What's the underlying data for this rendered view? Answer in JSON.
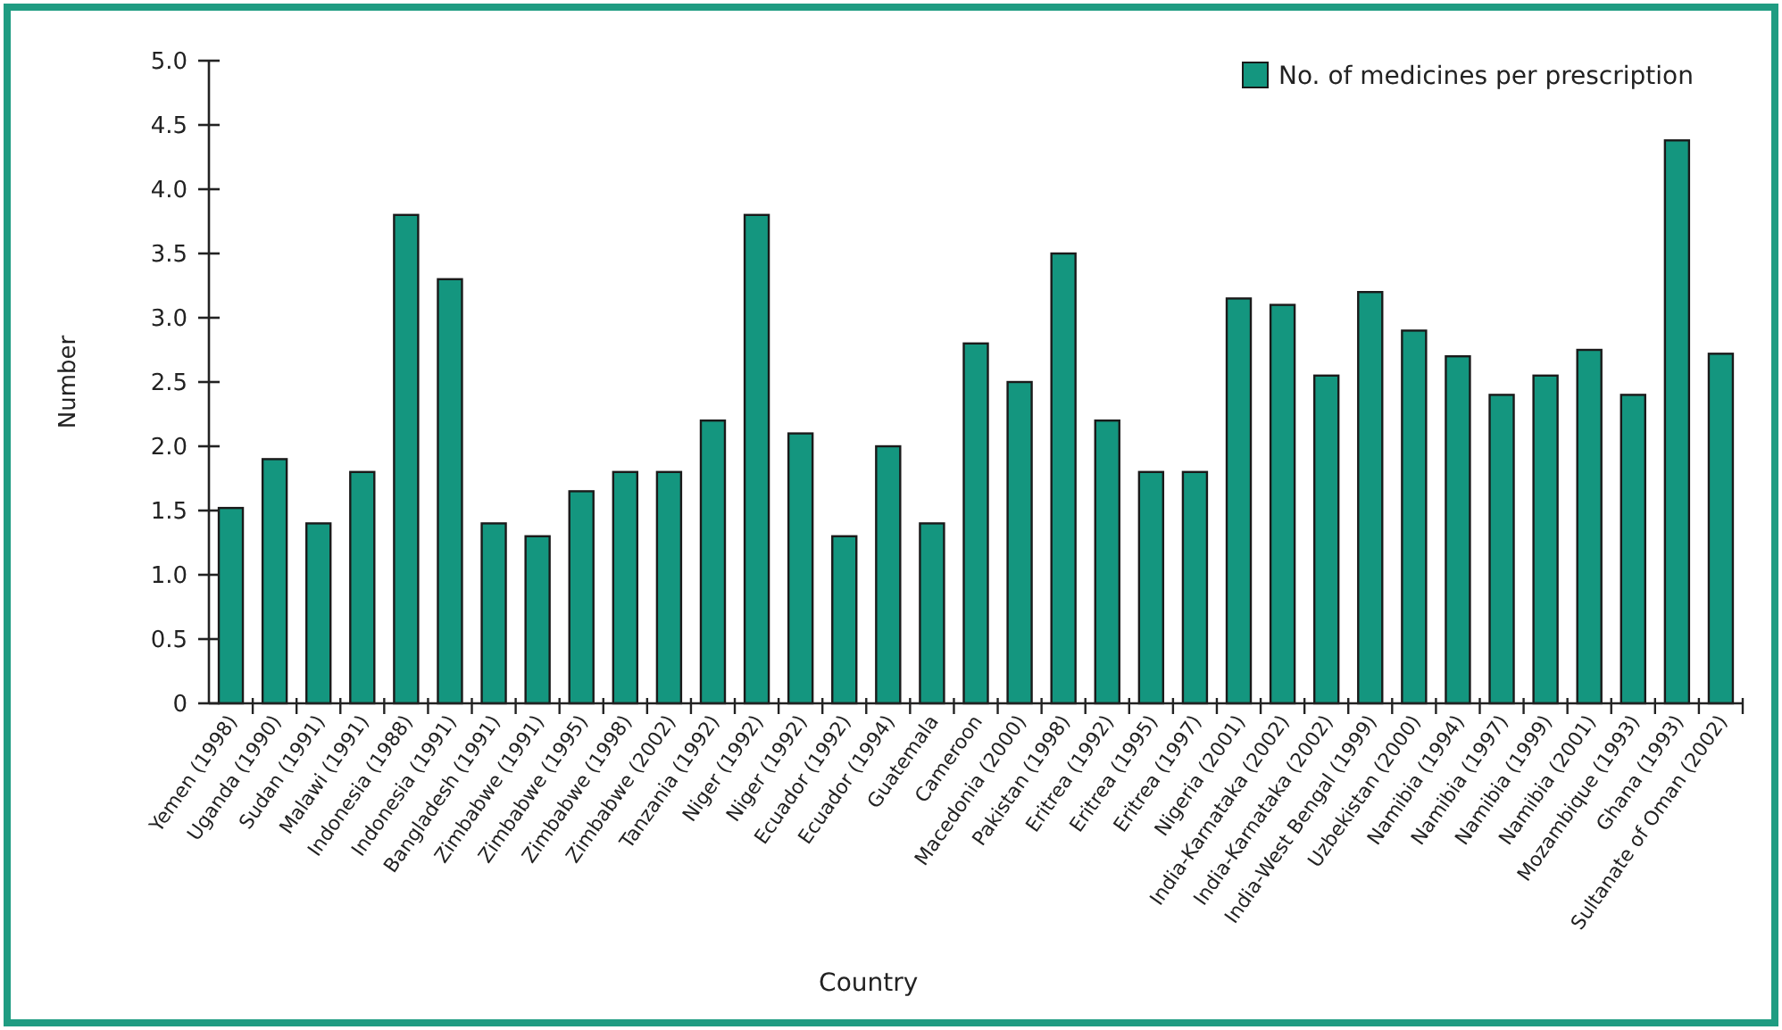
{
  "chart_data": {
    "type": "bar",
    "xlabel": "Country",
    "ylabel": "Number",
    "categories": [
      "Yemen (1998)",
      "Uganda (1990)",
      "Sudan (1991)",
      "Malawi (1991)",
      "Indonesia (1988)",
      "Indonesia (1991)",
      "Bangladesh (1991)",
      "Zimbabwe (1991)",
      "Zimbabwe (1995)",
      "Zimbabwe (1998)",
      "Zimbabwe (2002)",
      "Tanzania (1992)",
      "Niger (1992)",
      "Niger (1992)",
      "Ecuador (1992)",
      "Ecuador (1994)",
      "Guatemala",
      "Cameroon",
      "Macedonia (2000)",
      "Pakistan (1998)",
      "Eritrea (1992)",
      "Eritrea (1995)",
      "Eritrea (1997)",
      "Nigeria (2001)",
      "India-Karnataka (2002)",
      "India-Karnataka (2002)",
      "India-West Bengal (1999)",
      "Uzbekistan (2000)",
      "Namibia (1994)",
      "Namibia (1997)",
      "Namibia (1999)",
      "Namibia (2001)",
      "Mozambique (1993)",
      "Ghana (1993)",
      "Sultanate of Oman (2002)"
    ],
    "series": [
      {
        "name": "No. of medicines per prescription",
        "color": "#14967f",
        "values": [
          1.52,
          1.9,
          1.4,
          1.8,
          3.8,
          3.3,
          1.4,
          1.3,
          1.65,
          1.8,
          1.8,
          2.2,
          3.8,
          2.1,
          1.3,
          2.0,
          1.4,
          2.8,
          2.5,
          3.5,
          2.2,
          1.8,
          1.8,
          3.15,
          3.1,
          2.55,
          3.2,
          2.9,
          2.7,
          2.4,
          2.55,
          2.75,
          2.4,
          4.38,
          2.72
        ]
      }
    ],
    "ylim": [
      0,
      5
    ],
    "yticks": [
      0,
      {
        "value": 0.5,
        "label": "0.5"
      },
      {
        "value": 1,
        "label": "1.0"
      },
      {
        "value": 1.5,
        "label": "1.5"
      },
      {
        "value": 2,
        "label": "2.0"
      },
      {
        "value": 2.5,
        "label": "2.5"
      },
      {
        "value": 3,
        "label": "3.0"
      },
      {
        "value": 3.5,
        "label": "3.5"
      },
      {
        "value": 4,
        "label": "4.0"
      },
      {
        "value": 4.5,
        "label": "4.5"
      },
      {
        "value": 5,
        "label": "5.0"
      }
    ],
    "grid": false,
    "legend": "top right"
  }
}
